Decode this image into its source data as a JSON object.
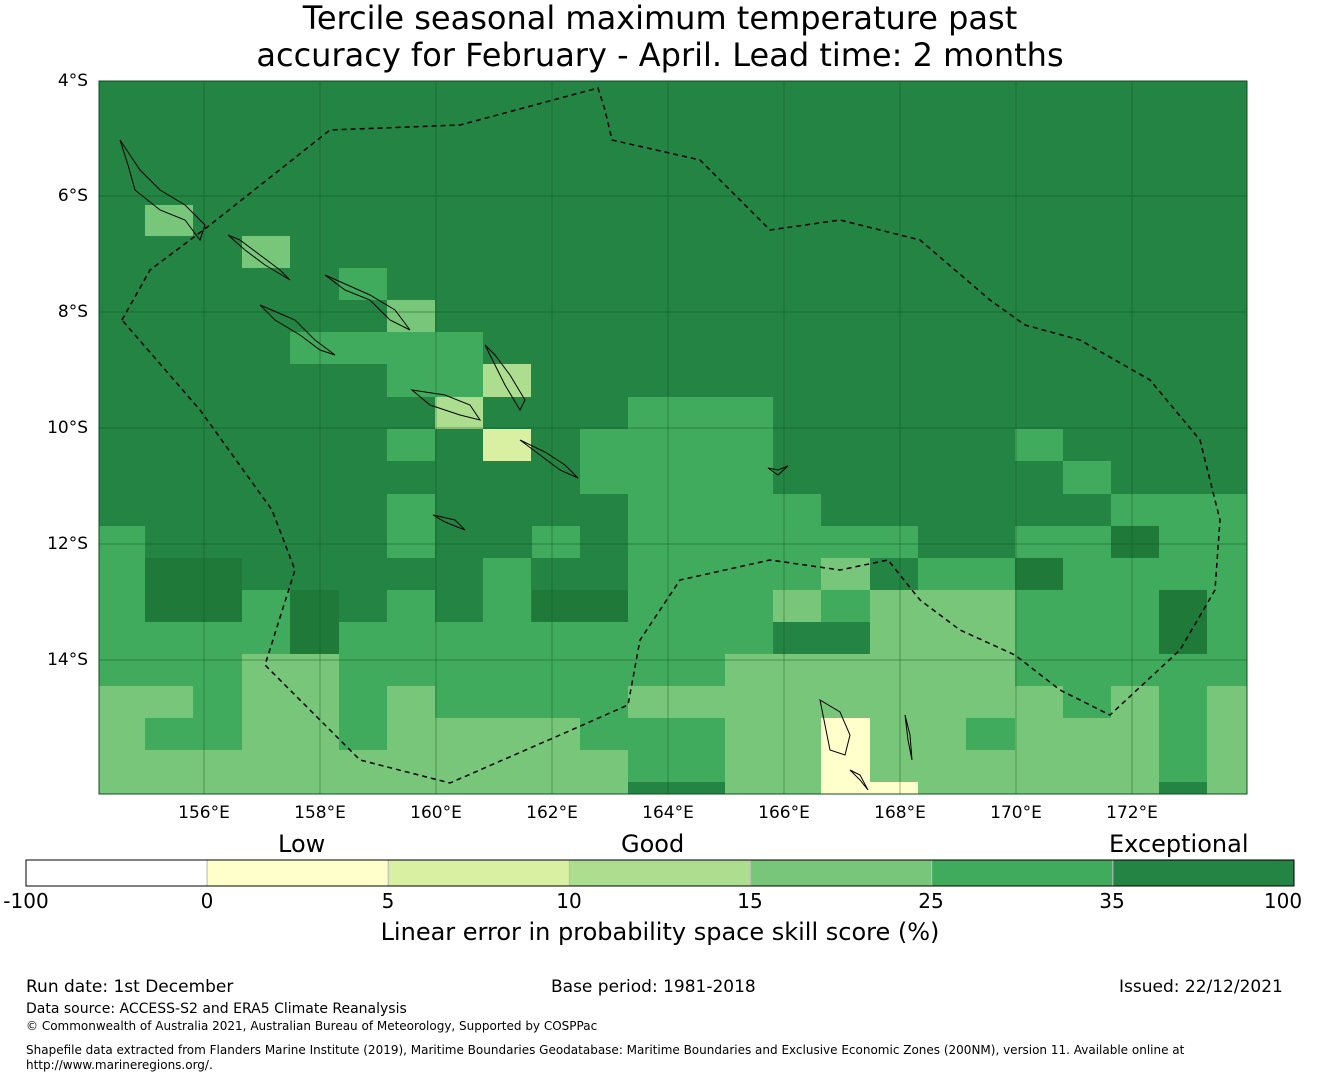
{
  "title": {
    "line1": "Tercile seasonal maximum temperature past",
    "line2": "accuracy for February - April. Lead time: 2 months"
  },
  "map": {
    "lat_labels": [
      "4°S",
      "6°S",
      "8°S",
      "10°S",
      "12°S",
      "14°S"
    ],
    "lon_labels": [
      "156°E",
      "158°E",
      "160°E",
      "162°E",
      "164°E",
      "166°E",
      "168°E",
      "170°E",
      "172°E"
    ],
    "colors": {
      "exceptional_dark": "#1f7a3a",
      "exceptional": "#238443",
      "good_high": "#41ab5d",
      "good": "#78c679",
      "good_low": "#addd8e",
      "low": "#d9f0a3",
      "lowest": "#ffffcc"
    }
  },
  "colorbar": {
    "categories": [
      "Low",
      "Good",
      "Exceptional"
    ],
    "ticks": [
      "-100",
      "0",
      "5",
      "10",
      "15",
      "25",
      "35",
      "100"
    ],
    "colors": [
      "#ffffff",
      "#ffffcc",
      "#d9f0a3",
      "#addd8e",
      "#78c679",
      "#41ab5d",
      "#238443"
    ],
    "label": "Linear error in probability space skill score (%)"
  },
  "footer": {
    "run_date": "Run date: 1st December",
    "base_period": "Base period: 1981-2018",
    "issued": "Issued: 22/12/2021",
    "data_source": "Data source: ACCESS-S2 and ERA5 Climate Reanalysis",
    "copyright": "© Commonwealth of Australia 2021, Australian Bureau of Meteorology, Supported by COSPPac",
    "shapefile_line1": "Shapefile data extracted from Flanders Marine Institute (2019), Maritime Boundaries Geodatabase: Maritime Boundaries and Exclusive Economic Zones (200NM), version 11. Available online at",
    "shapefile_line2": "http://www.marineregions.org/."
  }
}
